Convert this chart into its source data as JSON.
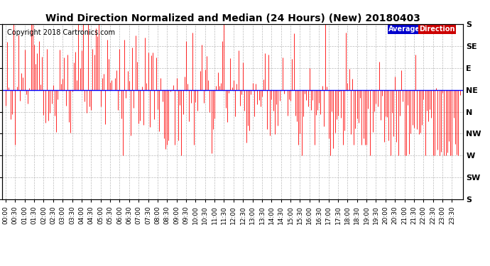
{
  "title": "Wind Direction Normalized and Median (24 Hours) (New) 20180403",
  "copyright": "Copyright 2018 Cartronics.com",
  "background_color": "#ffffff",
  "plot_bg_color": "#ffffff",
  "grid_color": "#aaaaaa",
  "y_labels_top_to_bottom": [
    "S",
    "SE",
    "E",
    "NE",
    "N",
    "NW",
    "W",
    "SW",
    "S"
  ],
  "y_ticks": [
    8,
    7,
    6,
    5,
    4,
    3,
    2,
    1,
    0
  ],
  "ylim": [
    0,
    8
  ],
  "average_line_y": 5.0,
  "average_line_color": "#0000ff",
  "data_color": "#ff0000",
  "legend_avg_color": "#0000cc",
  "legend_dir_color": "#cc0000",
  "title_fontsize": 10,
  "copyright_fontsize": 7,
  "axis_label_fontsize": 8,
  "tick_fontsize": 6.5
}
